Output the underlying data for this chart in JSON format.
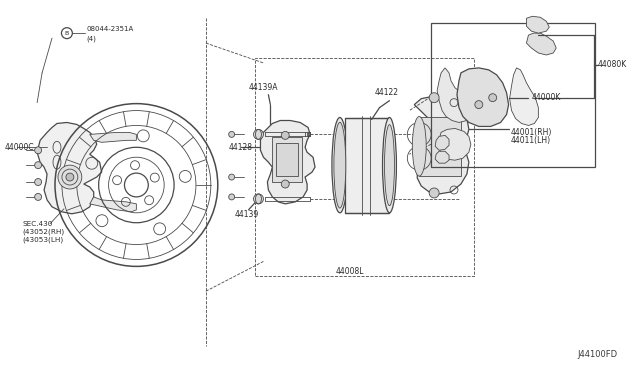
{
  "bg_color": "#ffffff",
  "line_color": "#4a4a4a",
  "diagram_id": "J44100FD",
  "labels": {
    "bolt": "B  08044-2351A\n     (4)",
    "knuckle": "44000C",
    "sec": "SEC.430\n(43052(RH)\n(43053(LH)",
    "slide_pin_a": "44139A",
    "slide_pin": "44139",
    "caliper_body": "44128",
    "piston": "44122",
    "caliper_assy": "44008L",
    "pad_kit": "44000K",
    "pad_hardware": "44080K",
    "caliper_rh": "44001(RH)\n44011(LH)"
  },
  "fig_width": 6.4,
  "fig_height": 3.72,
  "dpi": 100
}
